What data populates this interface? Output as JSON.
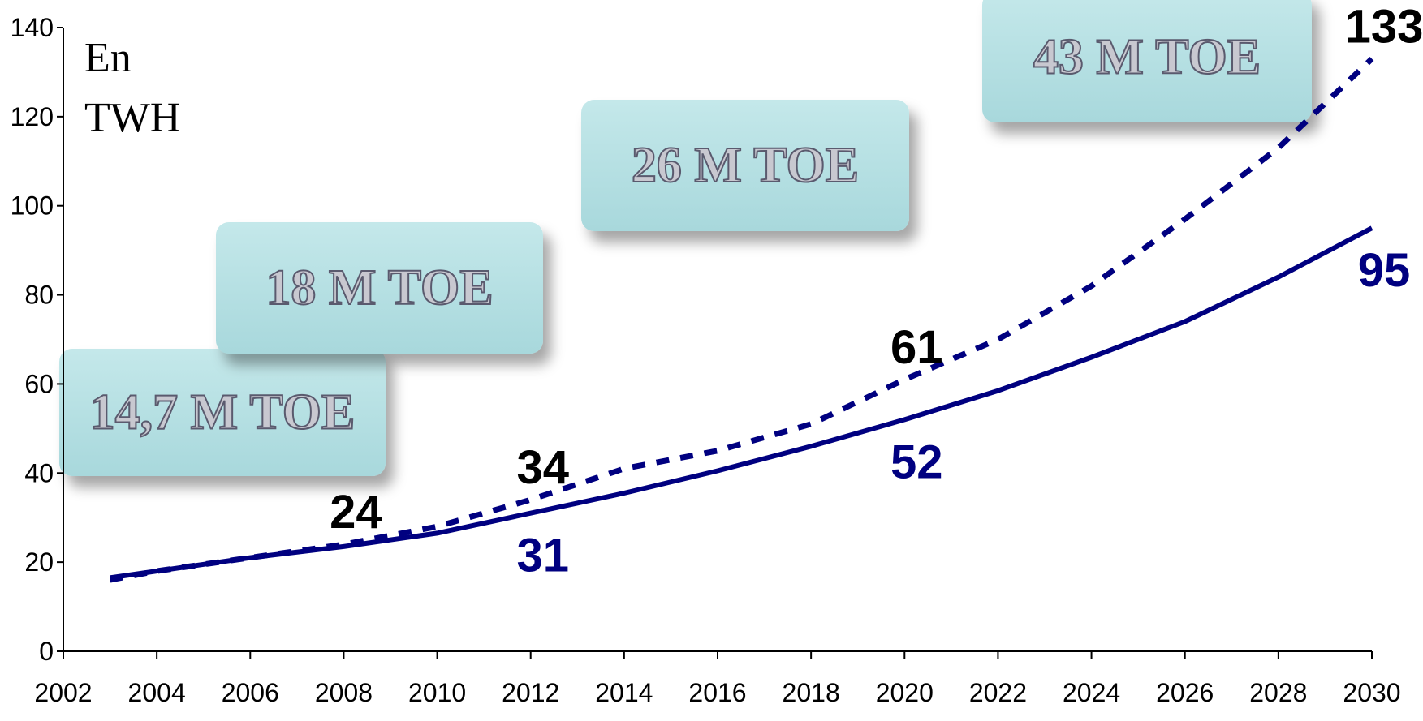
{
  "chart_data": {
    "type": "line",
    "y_label": [
      "En",
      "TWH"
    ],
    "annotations": [
      "14,7 M TOE",
      "18 M TOE",
      "26 M TOE",
      "43 M TOE"
    ],
    "x": [
      2003,
      2004,
      2006,
      2008,
      2010,
      2012,
      2014,
      2016,
      2018,
      2020,
      2022,
      2024,
      2026,
      2028,
      2030
    ],
    "series": [
      {
        "color": "#000080",
        "style": "solid",
        "label_color": "#000080",
        "label_side": "below",
        "values": [
          16.5,
          18,
          21,
          23.5,
          26.5,
          31,
          35.5,
          40.5,
          46,
          52,
          58.5,
          66,
          74,
          84,
          95
        ],
        "labeled_x": [
          2012,
          2020,
          2030
        ]
      },
      {
        "color": "#000080",
        "style": "dotted",
        "label_color": "#000000",
        "label_side": "above",
        "values": [
          16,
          18,
          21,
          24,
          28,
          34,
          41,
          45,
          51,
          61,
          70,
          82,
          97,
          113,
          133
        ],
        "labeled_x": [
          2008,
          2012,
          2020,
          2030
        ]
      }
    ],
    "xlim": [
      2002,
      2030
    ],
    "xticks": [
      2002,
      2004,
      2006,
      2008,
      2010,
      2012,
      2014,
      2016,
      2018,
      2020,
      2022,
      2024,
      2026,
      2028,
      2030
    ],
    "ylim": [
      0,
      140
    ],
    "yticks": [
      0,
      20,
      40,
      60,
      80,
      100,
      120,
      140
    ]
  }
}
